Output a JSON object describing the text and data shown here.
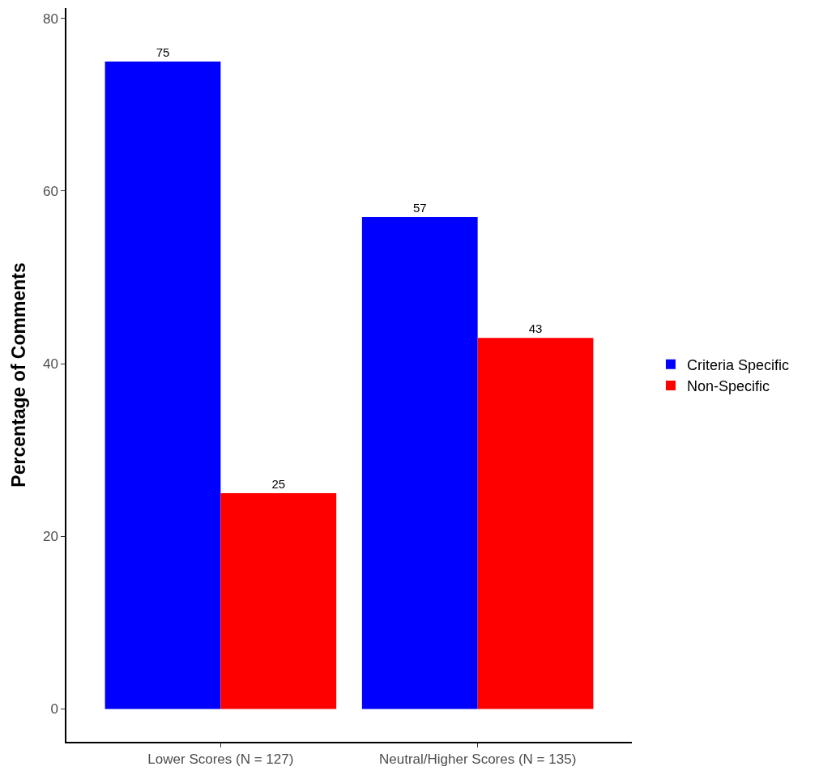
{
  "chart_data": {
    "type": "bar",
    "ylabel": "Percentage of Comments",
    "categories": [
      "Lower Scores (N = 127)",
      "Neutral/Higher Scores (N = 135)"
    ],
    "series": [
      {
        "name": "Criteria Specific",
        "color": "#0000ff",
        "values": [
          75,
          57
        ]
      },
      {
        "name": "Non-Specific",
        "color": "#ff0000",
        "values": [
          25,
          43
        ]
      }
    ],
    "ylim": [
      -3.8,
      81.2
    ],
    "yticks": [
      0,
      20,
      40,
      60,
      80
    ],
    "data_labels": true,
    "legend": "right"
  }
}
